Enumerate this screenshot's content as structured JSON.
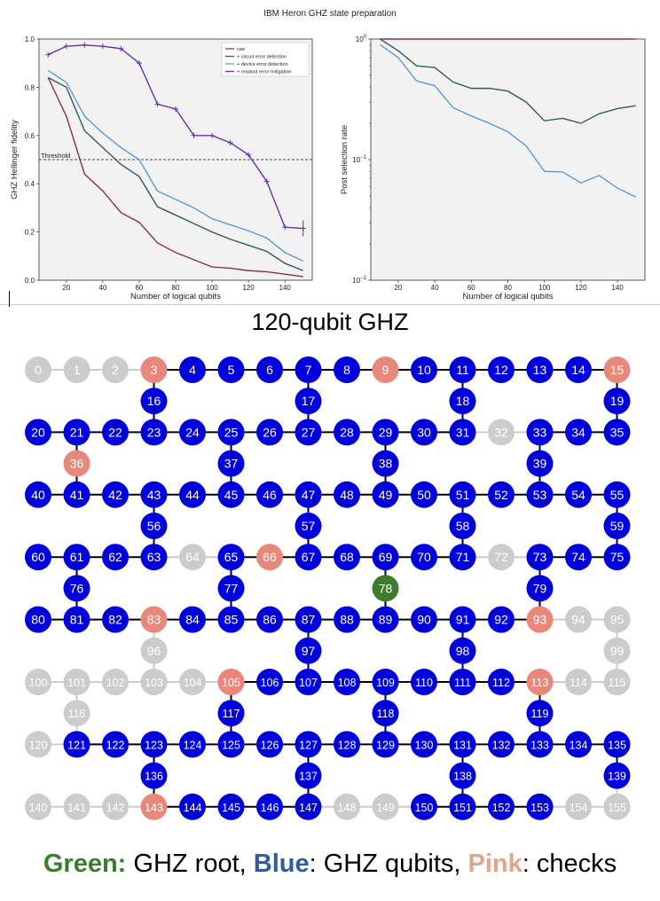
{
  "figure_title": "IBM Heron GHZ state preparation",
  "chart_data": [
    {
      "type": "line",
      "xlabel": "Number of logical qubits",
      "ylabel": "GHZ Hellinger fidelity",
      "xlim": [
        5,
        155
      ],
      "ylim": [
        0,
        1.0
      ],
      "xticks": [
        20,
        40,
        60,
        80,
        100,
        120,
        140
      ],
      "yticks": [
        "0.0",
        "0.2",
        "0.4",
        "0.6",
        "0.8",
        "1.0"
      ],
      "ytick_values": [
        0,
        0.2,
        0.4,
        0.6,
        0.8,
        1.0
      ],
      "grid": false,
      "legend_position": "top-right",
      "threshold": {
        "label": "Threshold",
        "value": 0.5
      },
      "x": [
        10,
        20,
        30,
        40,
        50,
        60,
        70,
        80,
        90,
        100,
        110,
        120,
        130,
        140,
        150
      ],
      "series": [
        {
          "name": "raw",
          "color": "#8b2f4f",
          "values": [
            0.84,
            0.68,
            0.44,
            0.37,
            0.28,
            0.24,
            0.155,
            0.115,
            0.085,
            0.055,
            0.05,
            0.04,
            0.035,
            0.025,
            0.015
          ]
        },
        {
          "name": "+ circuit error detection",
          "color": "#2f5f55",
          "values": [
            0.84,
            0.8,
            0.62,
            0.55,
            0.48,
            0.43,
            0.305,
            0.27,
            0.235,
            0.2,
            0.17,
            0.145,
            0.12,
            0.07,
            0.04
          ]
        },
        {
          "name": "+ device error detection",
          "color": "#5b9bd5",
          "values": [
            0.87,
            0.82,
            0.68,
            0.61,
            0.55,
            0.5,
            0.37,
            0.335,
            0.3,
            0.255,
            0.23,
            0.205,
            0.175,
            0.115,
            0.08
          ]
        },
        {
          "name": "+ readout error mitigation",
          "color": "#6a2fb0",
          "values": [
            0.935,
            0.97,
            0.975,
            0.97,
            0.96,
            0.9,
            0.73,
            0.71,
            0.6,
            0.6,
            0.57,
            0.52,
            0.41,
            0.22,
            0.215
          ]
        }
      ]
    },
    {
      "type": "line",
      "xlabel": "Number of logical qubits",
      "ylabel": "Post selection rate",
      "xlim": [
        5,
        155
      ],
      "ylim": [
        0.01,
        1
      ],
      "yscale": "log",
      "xticks": [
        20,
        40,
        60,
        80,
        100,
        120,
        140
      ],
      "grid": false,
      "x": [
        10,
        20,
        30,
        40,
        50,
        60,
        70,
        80,
        90,
        100,
        110,
        120,
        130,
        140,
        150
      ],
      "series": [
        {
          "color": "#8b2f4f",
          "values": [
            1,
            1,
            1,
            1,
            1,
            1,
            1,
            1,
            1,
            1,
            1,
            1,
            1,
            1,
            1
          ]
        },
        {
          "color": "#2f5f55",
          "values": [
            1.0,
            0.8,
            0.6,
            0.58,
            0.44,
            0.39,
            0.39,
            0.37,
            0.3,
            0.21,
            0.22,
            0.2,
            0.24,
            0.265,
            0.28
          ]
        },
        {
          "color": "#5b9bd5",
          "values": [
            0.9,
            0.7,
            0.45,
            0.41,
            0.27,
            0.23,
            0.2,
            0.17,
            0.13,
            0.08,
            0.079,
            0.064,
            0.074,
            0.058,
            0.049
          ]
        }
      ]
    }
  ],
  "lattice": {
    "title": "120-qubit GHZ",
    "colors": {
      "root": "#3a7d2c",
      "ghz": "#0000dd",
      "check": "#e8877a",
      "unused": "#cccccc",
      "edge_active": "#000000",
      "edge_inactive": "#cccccc"
    },
    "root": [
      78
    ],
    "checks": [
      3,
      9,
      15,
      36,
      66,
      83,
      93,
      105,
      113,
      143
    ],
    "unused": [
      0,
      1,
      2,
      32,
      64,
      72,
      94,
      95,
      96,
      99,
      100,
      101,
      102,
      103,
      104,
      114,
      115,
      116,
      120,
      140,
      141,
      142,
      148,
      149,
      154,
      155
    ]
  },
  "legend": [
    {
      "label": "Green:",
      "text": " GHZ root, ",
      "color": "#3a7d2c",
      "bold": true
    },
    {
      "label": "Blue",
      "text": ": GHZ qubits, ",
      "color": "#2e5e9e",
      "bold": true
    },
    {
      "label": "Pink",
      "text": ": checks",
      "color": "#e0a68c",
      "bold": true
    }
  ]
}
